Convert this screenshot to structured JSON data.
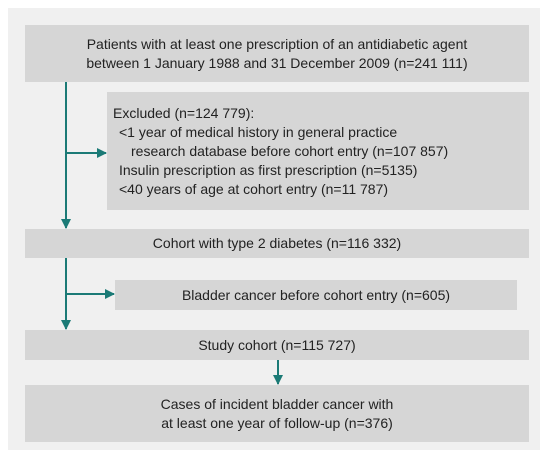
{
  "nodes": [
    {
      "lines": [
        "Patients with at least one prescription of an antidiabetic agent",
        "between 1 January 1988 and 31 December 2009 (n=241 111)"
      ]
    },
    {
      "lines": [
        "Excluded (n=124 779):",
        "<1 year of medical history in general practice",
        "research database before cohort entry (n=107 857)",
        "Insulin prescription as first prescription (n=5135)",
        "<40 years of age at cohort entry (n=11 787)"
      ]
    },
    {
      "lines": [
        "Cohort with type 2 diabetes (n=116 332)"
      ]
    },
    {
      "lines": [
        "Bladder cancer before cohort entry (n=605)"
      ]
    },
    {
      "lines": [
        "Study cohort (n=115 727)"
      ]
    },
    {
      "lines": [
        "Cases of incident bladder cancer with",
        "at least one year of follow-up (n=376)"
      ]
    }
  ]
}
